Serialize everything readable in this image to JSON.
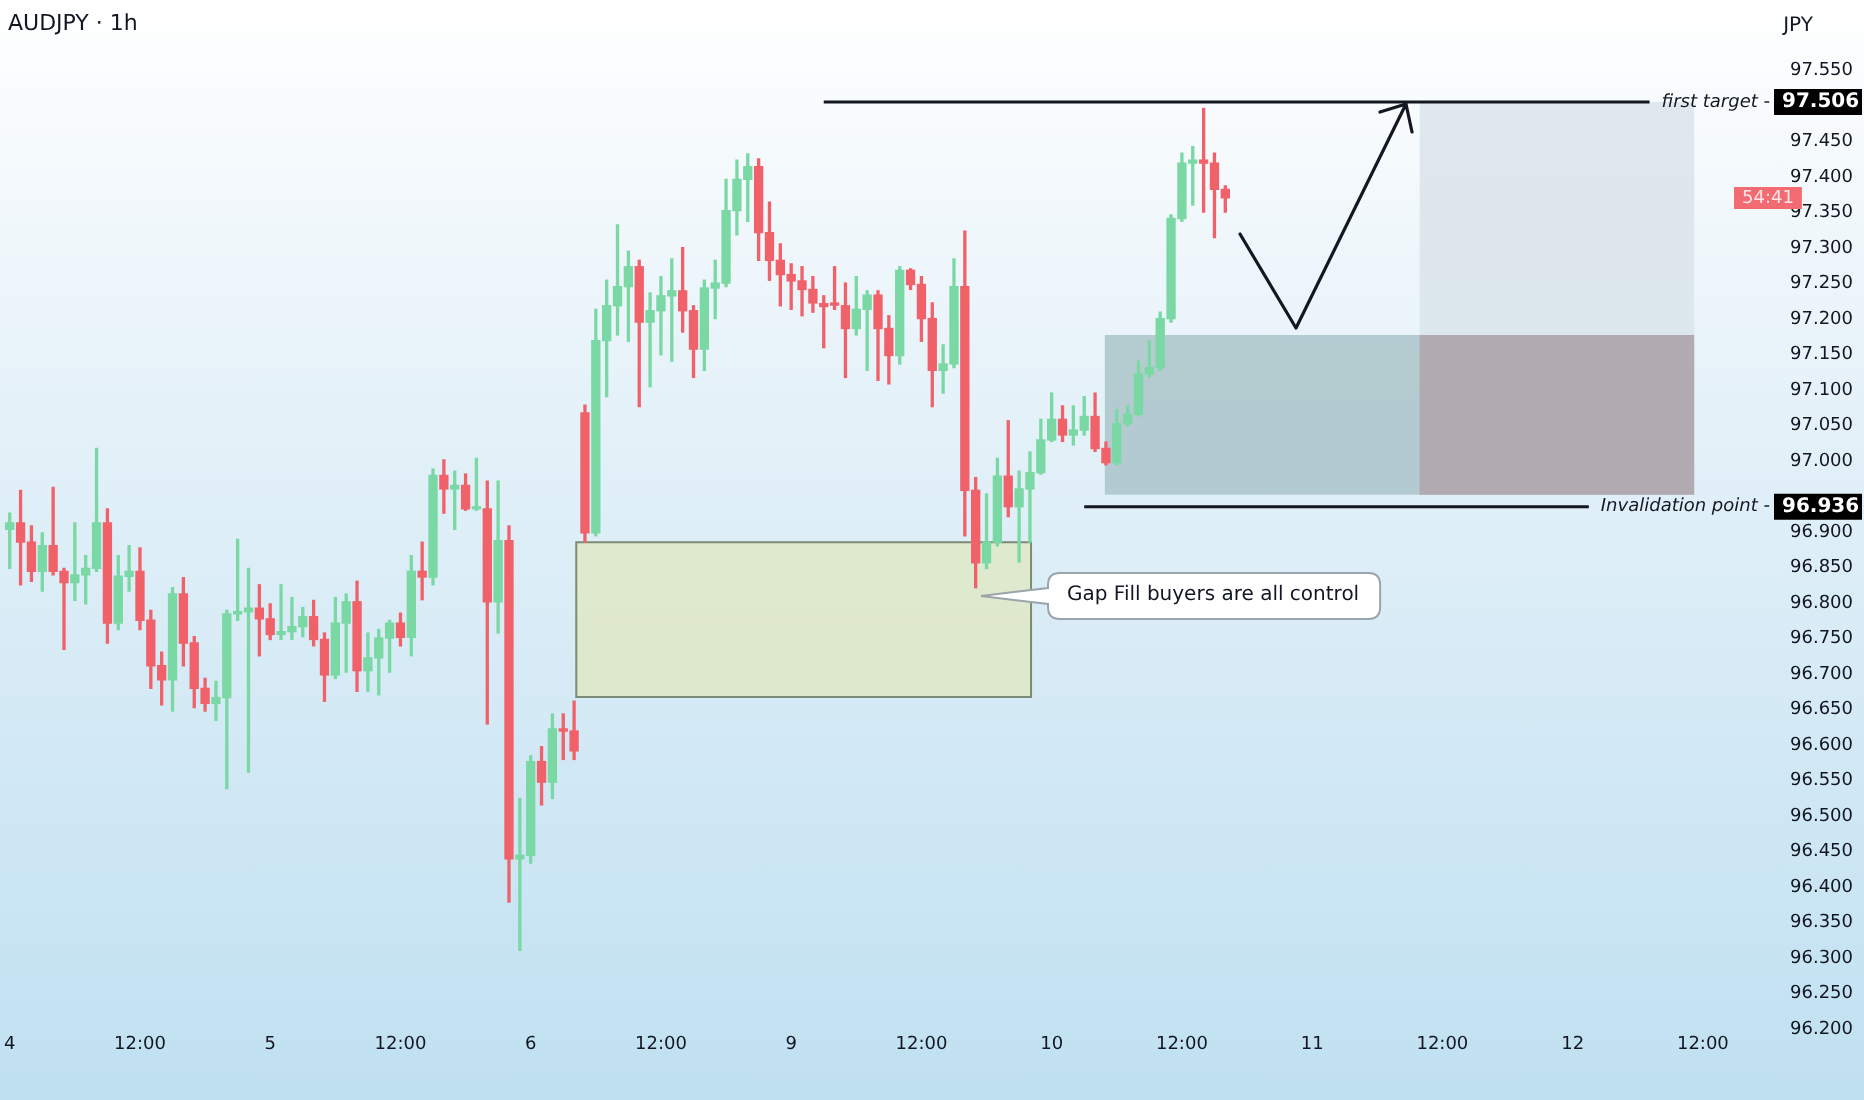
{
  "chart_data": {
    "type": "candlestick",
    "title": "AUDJPY · 1h",
    "ylabel": "JPY",
    "categories": [
      "4",
      null,
      null,
      null,
      null,
      null,
      null,
      null,
      null,
      null,
      null,
      null,
      "12:00",
      null,
      null,
      null,
      null,
      null,
      null,
      null,
      null,
      null,
      null,
      null,
      "5",
      null,
      null,
      null,
      null,
      null,
      null,
      null,
      null,
      null,
      null,
      null,
      "12:00",
      null,
      null,
      null,
      null,
      null,
      null,
      null,
      null,
      null,
      null,
      null,
      "6",
      null,
      null,
      null,
      null,
      null,
      null,
      null,
      null,
      null,
      null,
      null,
      "12:00",
      null,
      null,
      null,
      null,
      null,
      null,
      null,
      null,
      null,
      null,
      null,
      "9",
      null,
      null,
      null,
      null,
      null,
      null,
      null,
      null,
      null,
      null,
      null,
      "12:00",
      null,
      null,
      null,
      null,
      null,
      null,
      null,
      null,
      null,
      null,
      null,
      "10",
      null,
      null,
      null,
      null,
      null,
      null,
      null,
      null,
      null,
      null,
      null,
      "12:00",
      null,
      null,
      null,
      null,
      null,
      null,
      null,
      null,
      null,
      null,
      null,
      "11",
      null,
      null,
      null,
      null,
      null,
      null,
      null,
      null,
      null,
      null,
      null,
      "12:00",
      null,
      null,
      null,
      null,
      null,
      null,
      null,
      null,
      null,
      null,
      null,
      "12",
      null,
      null,
      null,
      null,
      null,
      null,
      null,
      null,
      null,
      null,
      null,
      "12:00",
      null,
      null
    ],
    "ohlc": [
      [
        96.904,
        96.927,
        96.849,
        96.913
      ],
      [
        96.913,
        96.959,
        96.826,
        96.886
      ],
      [
        96.886,
        96.909,
        96.831,
        96.845
      ],
      [
        96.845,
        96.899,
        96.817,
        96.881
      ],
      [
        96.881,
        96.963,
        96.84,
        96.845
      ],
      [
        96.845,
        96.849,
        96.735,
        96.829
      ],
      [
        96.829,
        96.913,
        96.804,
        96.84
      ],
      [
        96.84,
        96.867,
        96.799,
        96.849
      ],
      [
        96.849,
        97.018,
        96.845,
        96.913
      ],
      [
        96.913,
        96.933,
        96.744,
        96.772
      ],
      [
        96.772,
        96.867,
        96.763,
        96.838
      ],
      [
        96.838,
        96.881,
        96.817,
        96.845
      ],
      [
        96.845,
        96.878,
        96.763,
        96.776
      ],
      [
        96.776,
        96.79,
        96.68,
        96.712
      ],
      [
        96.712,
        96.731,
        96.657,
        96.692
      ],
      [
        96.692,
        96.822,
        96.648,
        96.813
      ],
      [
        96.813,
        96.836,
        96.712,
        96.744
      ],
      [
        96.744,
        96.753,
        96.653,
        96.68
      ],
      [
        96.68,
        96.694,
        96.648,
        96.659
      ],
      [
        96.659,
        96.69,
        96.635,
        96.667
      ],
      [
        96.667,
        96.79,
        96.539,
        96.785
      ],
      [
        96.785,
        96.89,
        96.776,
        96.788
      ],
      [
        96.788,
        96.849,
        96.562,
        96.793
      ],
      [
        96.793,
        96.826,
        96.726,
        96.778
      ],
      [
        96.778,
        96.799,
        96.749,
        96.756
      ],
      [
        96.756,
        96.826,
        96.749,
        96.76
      ],
      [
        96.76,
        96.808,
        96.749,
        96.767
      ],
      [
        96.767,
        96.794,
        96.753,
        96.781
      ],
      [
        96.781,
        96.804,
        96.74,
        96.749
      ],
      [
        96.749,
        96.758,
        96.662,
        96.699
      ],
      [
        96.699,
        96.808,
        96.694,
        96.772
      ],
      [
        96.772,
        96.813,
        96.703,
        96.802
      ],
      [
        96.802,
        96.831,
        96.676,
        96.705
      ],
      [
        96.705,
        96.758,
        96.676,
        96.723
      ],
      [
        96.723,
        96.763,
        96.671,
        96.751
      ],
      [
        96.751,
        96.776,
        96.703,
        96.772
      ],
      [
        96.772,
        96.786,
        96.74,
        96.752
      ],
      [
        96.752,
        96.867,
        96.726,
        96.845
      ],
      [
        96.845,
        96.886,
        96.805,
        96.837
      ],
      [
        96.837,
        96.989,
        96.826,
        96.98
      ],
      [
        96.98,
        97.002,
        96.927,
        96.961
      ],
      [
        96.961,
        96.986,
        96.904,
        96.966
      ],
      [
        96.966,
        96.982,
        96.931,
        96.933
      ],
      [
        96.933,
        97.004,
        96.931,
        96.933
      ],
      [
        96.933,
        96.972,
        96.63,
        96.802
      ],
      [
        96.802,
        96.972,
        96.758,
        96.888
      ],
      [
        96.888,
        96.909,
        96.379,
        96.44
      ],
      [
        96.44,
        96.525,
        96.311,
        96.445
      ],
      [
        96.445,
        96.585,
        96.434,
        96.577
      ],
      [
        96.577,
        96.598,
        96.516,
        96.548
      ],
      [
        96.548,
        96.644,
        96.525,
        96.623
      ],
      [
        96.623,
        96.644,
        96.58,
        96.62
      ],
      [
        96.62,
        96.662,
        96.58,
        96.592
      ],
      [
        97.068,
        97.079,
        96.886,
        96.899
      ],
      [
        96.899,
        97.214,
        96.895,
        97.17
      ],
      [
        97.17,
        97.255,
        97.091,
        97.219
      ],
      [
        97.219,
        97.333,
        97.178,
        97.246
      ],
      [
        97.246,
        97.296,
        97.169,
        97.274
      ],
      [
        97.274,
        97.283,
        97.077,
        97.196
      ],
      [
        97.196,
        97.237,
        97.105,
        97.212
      ],
      [
        97.212,
        97.26,
        97.15,
        97.233
      ],
      [
        97.233,
        97.285,
        97.141,
        97.24
      ],
      [
        97.24,
        97.301,
        97.182,
        97.212
      ],
      [
        97.212,
        97.219,
        97.118,
        97.158
      ],
      [
        97.158,
        97.255,
        97.128,
        97.244
      ],
      [
        97.244,
        97.283,
        97.201,
        97.251
      ],
      [
        97.251,
        97.397,
        97.246,
        97.353
      ],
      [
        97.353,
        97.424,
        97.319,
        97.397
      ],
      [
        97.397,
        97.433,
        97.338,
        97.415
      ],
      [
        97.415,
        97.426,
        97.283,
        97.322
      ],
      [
        97.322,
        97.365,
        97.255,
        97.283
      ],
      [
        97.283,
        97.306,
        97.219,
        97.263
      ],
      [
        97.263,
        97.278,
        97.214,
        97.254
      ],
      [
        97.254,
        97.274,
        97.205,
        97.242
      ],
      [
        97.242,
        97.26,
        97.21,
        97.223
      ],
      [
        97.222,
        97.233,
        97.16,
        97.218
      ],
      [
        97.222,
        97.274,
        97.214,
        97.22
      ],
      [
        97.219,
        97.251,
        97.118,
        97.187
      ],
      [
        97.187,
        97.26,
        97.178,
        97.214
      ],
      [
        97.214,
        97.24,
        97.128,
        97.234
      ],
      [
        97.234,
        97.24,
        97.114,
        97.187
      ],
      [
        97.187,
        97.205,
        97.109,
        97.149
      ],
      [
        97.149,
        97.274,
        97.137,
        97.269
      ],
      [
        97.269,
        97.271,
        97.242,
        97.249
      ],
      [
        97.249,
        97.26,
        97.169,
        97.201
      ],
      [
        97.201,
        97.223,
        97.077,
        97.128
      ],
      [
        97.128,
        97.164,
        97.096,
        97.137
      ],
      [
        97.137,
        97.285,
        97.132,
        97.246
      ],
      [
        97.246,
        97.324,
        96.895,
        96.959
      ],
      [
        96.959,
        96.977,
        96.822,
        96.857
      ],
      [
        96.857,
        96.954,
        96.849,
        96.886
      ],
      [
        96.886,
        97.004,
        96.881,
        96.979
      ],
      [
        96.979,
        97.057,
        96.922,
        96.936
      ],
      [
        96.936,
        96.986,
        96.858,
        96.961
      ],
      [
        96.961,
        97.013,
        96.886,
        96.984
      ],
      [
        96.984,
        97.059,
        96.982,
        97.03
      ],
      [
        97.03,
        97.096,
        97.028,
        97.059
      ],
      [
        97.059,
        97.078,
        97.028,
        97.037
      ],
      [
        97.037,
        97.078,
        97.023,
        97.044
      ],
      [
        97.044,
        97.091,
        97.037,
        97.063
      ],
      [
        97.063,
        97.096,
        97.014,
        97.018
      ],
      [
        97.018,
        97.027,
        96.995,
        96.998
      ],
      [
        96.998,
        97.073,
        96.995,
        97.053
      ],
      [
        97.053,
        97.078,
        97.05,
        97.066
      ],
      [
        97.066,
        97.141,
        97.064,
        97.123
      ],
      [
        97.123,
        97.169,
        97.119,
        97.132
      ],
      [
        97.132,
        97.21,
        97.128,
        97.201
      ],
      [
        97.201,
        97.347,
        97.196,
        97.342
      ],
      [
        97.342,
        97.434,
        97.338,
        97.42
      ],
      [
        97.42,
        97.443,
        97.361,
        97.424
      ],
      [
        97.424,
        97.497,
        97.351,
        97.42
      ],
      [
        97.42,
        97.434,
        97.315,
        97.383
      ],
      [
        97.383,
        97.388,
        97.351,
        97.371
      ],
      null,
      null,
      null,
      null,
      null,
      null,
      null,
      null,
      null,
      null,
      null,
      null,
      null,
      null,
      null,
      null,
      null,
      null,
      null,
      null,
      null,
      null,
      null,
      null,
      null,
      null,
      null,
      null,
      null,
      null,
      null,
      null,
      null,
      null,
      null,
      null,
      null,
      null,
      null,
      null,
      null,
      null,
      null,
      null,
      null,
      null
    ],
    "colors": [
      "#7ad8a4",
      "#f0616a",
      "#f0616a",
      "#7ad8a4",
      "#f0616a",
      "#f0616a",
      "#7ad8a4",
      "#7ad8a4",
      "#7ad8a4",
      "#f0616a",
      "#7ad8a4",
      "#7ad8a4",
      "#f0616a",
      "#f0616a",
      "#f0616a",
      "#7ad8a4",
      "#f0616a",
      "#f0616a",
      "#f0616a",
      "#7ad8a4",
      "#7ad8a4",
      "#7ad8a4",
      "#7ad8a4",
      "#f0616a",
      "#f0616a",
      "#7ad8a4",
      "#7ad8a4",
      "#7ad8a4",
      "#f0616a",
      "#f0616a",
      "#7ad8a4",
      "#7ad8a4",
      "#f0616a",
      "#7ad8a4",
      "#7ad8a4",
      "#7ad8a4",
      "#f0616a",
      "#7ad8a4",
      "#f0616a",
      "#7ad8a4",
      "#f0616a",
      "#7ad8a4",
      "#f0616a",
      "#7ad8a4",
      "#f0616a",
      "#7ad8a4",
      "#f0616a",
      "#7ad8a4",
      "#7ad8a4",
      "#f0616a",
      "#7ad8a4",
      "#f0616a",
      "#f0616a",
      "#f0616a",
      "#7ad8a4",
      "#7ad8a4",
      "#7ad8a4",
      "#7ad8a4",
      "#f0616a",
      "#7ad8a4",
      "#7ad8a4",
      "#7ad8a4",
      "#f0616a",
      "#f0616a",
      "#7ad8a4",
      "#7ad8a4",
      "#7ad8a4",
      "#7ad8a4",
      "#7ad8a4",
      "#f0616a",
      "#f0616a",
      "#f0616a",
      "#f0616a",
      "#f0616a",
      "#f0616a",
      "#f0616a",
      "#f0616a",
      "#f0616a",
      "#7ad8a4",
      "#7ad8a4",
      "#f0616a",
      "#f0616a",
      "#7ad8a4",
      "#f0616a",
      "#f0616a",
      "#f0616a",
      "#7ad8a4",
      "#7ad8a4",
      "#f0616a",
      "#f0616a",
      "#7ad8a4",
      "#7ad8a4",
      "#f0616a",
      "#7ad8a4",
      "#7ad8a4",
      "#7ad8a4",
      "#7ad8a4",
      "#f0616a",
      "#7ad8a4",
      "#7ad8a4",
      "#f0616a",
      "#f0616a",
      "#7ad8a4",
      "#7ad8a4",
      "#7ad8a4",
      "#7ad8a4",
      "#7ad8a4",
      "#7ad8a4",
      "#7ad8a4",
      "#7ad8a4",
      "#f0616a",
      "#f0616a",
      "#f0616a",
      null,
      null,
      null,
      null,
      null,
      null,
      null,
      null,
      null,
      null,
      null,
      null,
      null,
      null,
      null,
      null,
      null,
      null,
      null,
      null,
      null,
      null,
      null,
      null,
      null,
      null,
      null,
      null,
      null,
      null,
      null,
      null,
      null,
      null,
      null,
      null,
      null,
      null,
      null,
      null,
      null,
      null,
      null,
      null,
      null,
      null
    ],
    "ylim": [
      96.2,
      97.55
    ],
    "yticks": [
      {
        "value": 96.2,
        "label": "96.200"
      },
      {
        "value": 96.25,
        "label": "96.250"
      },
      {
        "value": 96.3,
        "label": "96.300"
      },
      {
        "value": 96.35,
        "label": "96.350"
      },
      {
        "value": 96.4,
        "label": "96.400"
      },
      {
        "value": 96.45,
        "label": "96.450"
      },
      {
        "value": 96.5,
        "label": "96.500"
      },
      {
        "value": 96.55,
        "label": "96.550"
      },
      {
        "value": 96.6,
        "label": "96.600"
      },
      {
        "value": 96.65,
        "label": "96.650"
      },
      {
        "value": 96.7,
        "label": "96.700"
      },
      {
        "value": 96.75,
        "label": "96.750"
      },
      {
        "value": 96.8,
        "label": "96.800"
      },
      {
        "value": 96.85,
        "label": "96.850"
      },
      {
        "value": 96.9,
        "label": "96.900"
      },
      {
        "value": 97.0,
        "label": "97.000"
      },
      {
        "value": 97.05,
        "label": "97.050"
      },
      {
        "value": 97.1,
        "label": "97.100"
      },
      {
        "value": 97.15,
        "label": "97.150"
      },
      {
        "value": 97.2,
        "label": "97.200"
      },
      {
        "value": 97.25,
        "label": "97.250"
      },
      {
        "value": 97.3,
        "label": "97.300"
      },
      {
        "value": 97.35,
        "label": "97.350"
      },
      {
        "value": 97.4,
        "label": "97.400"
      },
      {
        "value": 97.45,
        "label": "97.450"
      },
      {
        "value": 97.55,
        "label": "97.550"
      }
    ],
    "ref_lines": [
      {
        "axis": "y",
        "value": 97.506,
        "label": "first target -"
      },
      {
        "axis": "y",
        "value": 96.936,
        "label": "Invalidation point -"
      }
    ],
    "bands": [
      {
        "axis": "y",
        "from": 96.668,
        "to": 96.886,
        "color": "#dfe8c6",
        "label": "Gap Fill buyers are all control"
      },
      {
        "axis": "y",
        "from": 96.953,
        "to": 97.178,
        "color": "#aac4c9"
      },
      {
        "axis": "y",
        "from": 97.178,
        "to": 97.506,
        "color": "#dbe4eb"
      },
      {
        "axis": "y",
        "from": 96.953,
        "to": 97.178,
        "color": "#b1a5ab"
      }
    ],
    "annotations": [
      {
        "text": "54:41",
        "y": 97.371
      },
      "97.506",
      "96.936"
    ],
    "grid": false,
    "legend": false
  }
}
